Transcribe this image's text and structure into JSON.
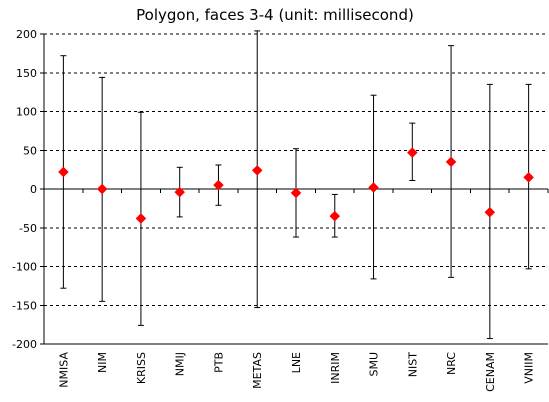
{
  "chart_data": {
    "type": "scatter",
    "title": "Polygon, faces 3-4 (unit: millisecond)",
    "xlabel": "",
    "ylabel": "",
    "ylim": [
      -200,
      200
    ],
    "yticks": [
      -200,
      -150,
      -100,
      -50,
      0,
      50,
      100,
      150,
      200
    ],
    "grid": "horizontal dashed",
    "legend": "none",
    "categories": [
      "NMISA",
      "NIM",
      "KRISS",
      "NMIJ",
      "PTB",
      "METAS",
      "LNE",
      "INRIM",
      "SMU",
      "NIST",
      "NRC",
      "CENAM",
      "VNIIM"
    ],
    "values": [
      22,
      0,
      -38,
      -4,
      5,
      24,
      -5,
      -35,
      2,
      47,
      35,
      -30,
      15
    ],
    "error_low": [
      -128,
      -145,
      -176,
      -36,
      -21,
      -153,
      -62,
      -62,
      -116,
      11,
      -114,
      -193,
      -103
    ],
    "error_high": [
      172,
      144,
      99,
      28,
      31,
      204,
      52,
      -7,
      121,
      85,
      185,
      135,
      135
    ],
    "marker_color": "#ff0000",
    "marker_shape": "diamond"
  }
}
